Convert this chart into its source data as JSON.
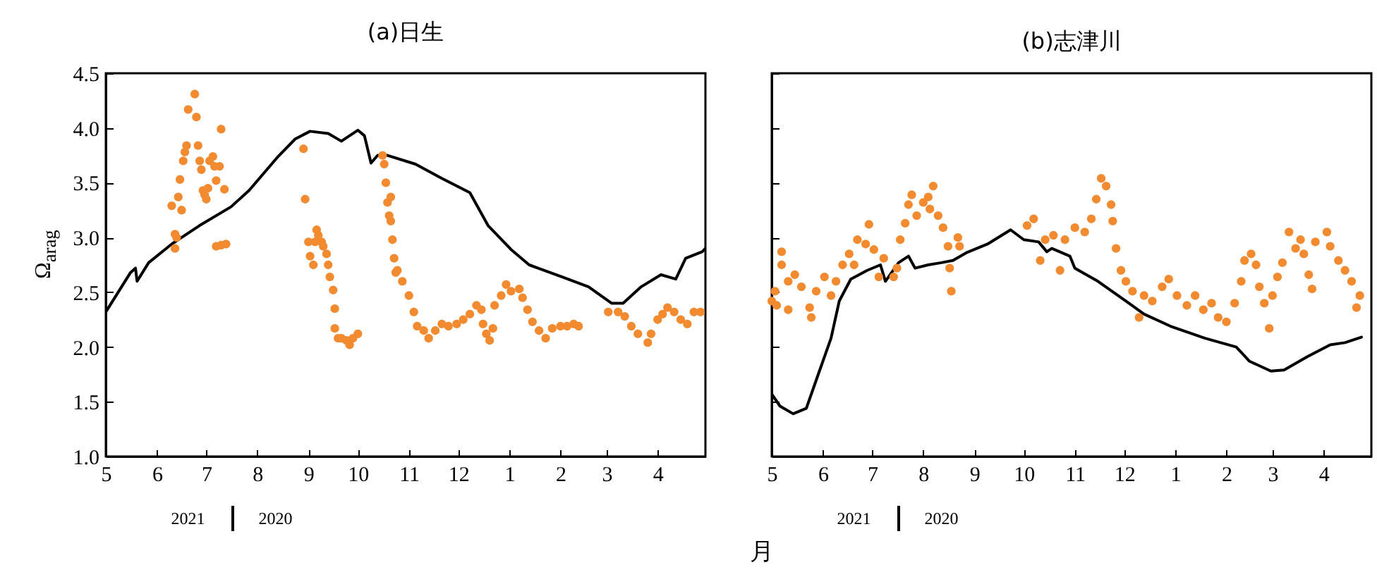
{
  "chart_data": [
    {
      "type": "scatter",
      "title": "(a)日生",
      "xlabel": "月",
      "ylabel": "Ω$_{arag}$",
      "annotations": [
        "2021",
        "2020"
      ],
      "xlim": [
        "2020-05-01",
        "2021-04-30"
      ],
      "xticks": [
        {
          "value": "2020-05-01",
          "label": "5"
        },
        {
          "value": "2020-06-01",
          "label": "6"
        },
        {
          "value": "2020-07-01",
          "label": "7"
        },
        {
          "value": "2020-08-01",
          "label": "8"
        },
        {
          "value": "2020-09-01",
          "label": "9"
        },
        {
          "value": "2020-10-01",
          "label": "10"
        },
        {
          "value": "2020-11-01",
          "label": "11"
        },
        {
          "value": "2020-12-01",
          "label": "12"
        },
        {
          "value": "2021-01-01",
          "label": "1"
        },
        {
          "value": "2021-02-01",
          "label": "2"
        },
        {
          "value": "2021-03-01",
          "label": "3"
        },
        {
          "value": "2021-04-01",
          "label": "4"
        }
      ],
      "ylim": [
        1.0,
        4.5
      ],
      "yticks": [
        {
          "value": 1,
          "label": "1.0"
        },
        {
          "value": 1.5,
          "label": "1.5"
        },
        {
          "value": 2,
          "label": "2.0"
        },
        {
          "value": 2.5,
          "label": "2.5"
        },
        {
          "value": 3,
          "label": "3.0"
        },
        {
          "value": 3.5,
          "label": "3.5"
        },
        {
          "value": 4,
          "label": "4.0"
        },
        {
          "value": 4.5,
          "label": "4.5"
        }
      ],
      "series": [
        {
          "type": "line",
          "color": "#000000",
          "line_style": "solid",
          "x": [
            "2020-05-01",
            "2020-05-16",
            "2020-05-19",
            "2020-05-20",
            "2020-05-27",
            "2020-06-10",
            "2020-06-27",
            "2020-07-16",
            "2020-07-27",
            "2020-08-13",
            "2020-08-24",
            "2020-09-02",
            "2020-09-13",
            "2020-09-21",
            "2020-10-01",
            "2020-10-05",
            "2020-10-09",
            "2020-10-13",
            "2020-10-19",
            "2020-11-05",
            "2020-11-21",
            "2020-12-08",
            "2020-12-19",
            "2021-01-02",
            "2021-01-13",
            "2021-02-02",
            "2021-02-18",
            "2021-03-04",
            "2021-03-11",
            "2021-03-22",
            "2021-04-03",
            "2021-04-12",
            "2021-04-18",
            "2021-04-28",
            "2021-04-30"
          ],
          "values": [
            2.32,
            2.68,
            2.72,
            2.6,
            2.77,
            2.94,
            3.11,
            3.28,
            3.43,
            3.73,
            3.9,
            3.97,
            3.95,
            3.88,
            3.98,
            3.93,
            3.68,
            3.75,
            3.75,
            3.67,
            3.54,
            3.41,
            3.11,
            2.89,
            2.75,
            2.64,
            2.55,
            2.4,
            2.4,
            2.55,
            2.66,
            2.62,
            2.81,
            2.87,
            2.9
          ]
        },
        {
          "type": "scatter",
          "color": "#f28a30",
          "marker": "circle",
          "x": [
            "2020-06-10",
            "2020-06-12",
            "2020-06-12",
            "2020-06-13",
            "2020-06-14",
            "2020-06-15",
            "2020-06-16",
            "2020-06-17",
            "2020-06-18",
            "2020-06-19",
            "2020-06-20",
            "2020-06-24",
            "2020-06-25",
            "2020-06-26",
            "2020-06-27",
            "2020-06-28",
            "2020-06-29",
            "2020-06-30",
            "2020-07-01",
            "2020-07-02",
            "2020-07-03",
            "2020-07-05",
            "2020-07-06",
            "2020-07-07",
            "2020-07-07",
            "2020-07-09",
            "2020-07-10",
            "2020-07-10",
            "2020-07-12",
            "2020-07-13",
            "2020-08-29",
            "2020-08-30",
            "2020-09-01",
            "2020-09-02",
            "2020-09-04",
            "2020-09-05",
            "2020-09-06",
            "2020-09-07",
            "2020-09-09",
            "2020-09-10",
            "2020-09-12",
            "2020-09-13",
            "2020-09-14",
            "2020-09-16",
            "2020-09-17",
            "2020-09-17",
            "2020-09-19",
            "2020-09-21",
            "2020-09-24",
            "2020-09-26",
            "2020-09-28",
            "2020-10-01",
            "2020-10-16",
            "2020-10-17",
            "2020-10-18",
            "2020-10-19",
            "2020-10-20",
            "2020-10-21",
            "2020-10-21",
            "2020-10-22",
            "2020-10-23",
            "2020-10-24",
            "2020-10-25",
            "2020-10-28",
            "2020-11-01",
            "2020-11-04",
            "2020-11-06",
            "2020-11-10",
            "2020-11-13",
            "2020-11-17",
            "2020-11-21",
            "2020-11-25",
            "2020-11-30",
            "2020-12-04",
            "2020-12-08",
            "2020-12-12",
            "2020-12-15",
            "2020-12-16",
            "2020-12-18",
            "2020-12-20",
            "2020-12-22",
            "2020-12-23",
            "2020-12-27",
            "2020-12-30",
            "2021-01-02",
            "2021-01-07",
            "2021-01-09",
            "2021-01-12",
            "2021-01-15",
            "2021-01-19",
            "2021-01-23",
            "2021-01-27",
            "2021-02-01",
            "2021-02-05",
            "2021-02-09",
            "2021-02-12",
            "2021-03-02",
            "2021-03-08",
            "2021-03-12",
            "2021-03-16",
            "2021-03-20",
            "2021-03-26",
            "2021-03-28",
            "2021-04-01",
            "2021-04-04",
            "2021-04-07",
            "2021-04-11",
            "2021-04-15",
            "2021-04-19",
            "2021-04-23",
            "2021-04-27"
          ],
          "values": [
            3.29,
            3.03,
            2.9,
            3.0,
            3.37,
            3.53,
            3.25,
            3.7,
            3.78,
            3.84,
            4.17,
            4.31,
            4.1,
            3.84,
            3.7,
            3.62,
            3.43,
            3.39,
            3.35,
            3.45,
            3.7,
            3.74,
            3.65,
            3.52,
            2.92,
            3.65,
            3.99,
            2.93,
            3.44,
            2.94,
            3.81,
            3.35,
            2.96,
            2.83,
            2.75,
            2.96,
            3.07,
            3.02,
            2.96,
            2.92,
            2.85,
            2.75,
            2.64,
            2.52,
            2.35,
            2.17,
            2.08,
            2.08,
            2.06,
            2.02,
            2.08,
            2.12,
            3.75,
            3.67,
            3.5,
            3.32,
            3.2,
            3.37,
            3.15,
            2.98,
            2.81,
            2.68,
            2.7,
            2.6,
            2.47,
            2.32,
            2.19,
            2.15,
            2.08,
            2.15,
            2.21,
            2.19,
            2.21,
            2.25,
            2.3,
            2.38,
            2.34,
            2.21,
            2.12,
            2.06,
            2.17,
            2.38,
            2.47,
            2.57,
            2.51,
            2.53,
            2.45,
            2.34,
            2.23,
            2.15,
            2.08,
            2.17,
            2.19,
            2.19,
            2.21,
            2.19,
            2.32,
            2.32,
            2.28,
            2.19,
            2.12,
            2.04,
            2.12,
            2.25,
            2.3,
            2.36,
            2.32,
            2.25,
            2.21,
            2.32,
            2.32
          ]
        }
      ]
    },
    {
      "type": "scatter",
      "title": "(b)志津川",
      "annotations": [
        "2021",
        "2020"
      ],
      "xlim": [
        "2020-05-01",
        "2021-04-30"
      ],
      "xticks": [
        {
          "value": "2020-05-01",
          "label": "5"
        },
        {
          "value": "2020-06-01",
          "label": "6"
        },
        {
          "value": "2020-07-01",
          "label": "7"
        },
        {
          "value": "2020-08-01",
          "label": "8"
        },
        {
          "value": "2020-09-01",
          "label": "9"
        },
        {
          "value": "2020-10-01",
          "label": "10"
        },
        {
          "value": "2020-11-01",
          "label": "11"
        },
        {
          "value": "2020-12-01",
          "label": "12"
        },
        {
          "value": "2021-01-01",
          "label": "1"
        },
        {
          "value": "2021-02-01",
          "label": "2"
        },
        {
          "value": "2021-03-01",
          "label": "3"
        },
        {
          "value": "2021-04-01",
          "label": "4"
        }
      ],
      "ylim": [
        1.0,
        4.5
      ],
      "yticks": [
        {
          "value": 1,
          "label": null
        },
        {
          "value": 1.5,
          "label": null
        },
        {
          "value": 2,
          "label": null
        },
        {
          "value": 2.5,
          "label": null
        },
        {
          "value": 3,
          "label": null
        },
        {
          "value": 3.5,
          "label": null
        },
        {
          "value": 4,
          "label": null
        },
        {
          "value": 4.5,
          "label": null
        }
      ],
      "tick_labels": "x",
      "series": [
        {
          "type": "line",
          "color": "#000000",
          "line_style": "solid",
          "x": [
            "2020-05-01",
            "2020-05-06",
            "2020-05-14",
            "2020-05-22",
            "2020-05-29",
            "2020-06-06",
            "2020-06-11",
            "2020-06-18",
            "2020-06-28",
            "2020-07-06",
            "2020-07-09",
            "2020-07-17",
            "2020-07-23",
            "2020-07-27",
            "2020-08-04",
            "2020-08-12",
            "2020-08-19",
            "2020-08-27",
            "2020-09-09",
            "2020-09-23",
            "2020-10-01",
            "2020-10-10",
            "2020-10-15",
            "2020-10-18",
            "2020-10-29",
            "2020-11-01",
            "2020-11-15",
            "2020-12-02",
            "2020-12-13",
            "2020-12-29",
            "2021-01-19",
            "2021-02-07",
            "2021-02-15",
            "2021-02-28",
            "2021-03-08",
            "2021-03-22",
            "2021-04-05",
            "2021-04-14",
            "2021-04-24"
          ],
          "values": [
            1.57,
            1.46,
            1.39,
            1.44,
            1.74,
            2.08,
            2.42,
            2.62,
            2.7,
            2.75,
            2.6,
            2.77,
            2.83,
            2.72,
            2.75,
            2.77,
            2.79,
            2.86,
            2.94,
            3.07,
            2.98,
            2.96,
            2.87,
            2.9,
            2.83,
            2.72,
            2.6,
            2.42,
            2.3,
            2.19,
            2.08,
            2.0,
            1.87,
            1.78,
            1.79,
            1.91,
            2.02,
            2.04,
            2.09
          ]
        },
        {
          "type": "scatter",
          "color": "#f28a30",
          "marker": "circle",
          "x": [
            "2020-05-01",
            "2020-05-03",
            "2020-05-04",
            "2020-05-07",
            "2020-05-07",
            "2020-05-11",
            "2020-05-11",
            "2020-05-15",
            "2020-05-19",
            "2020-05-24",
            "2020-05-25",
            "2020-05-28",
            "2020-06-02",
            "2020-06-06",
            "2020-06-09",
            "2020-06-13",
            "2020-06-17",
            "2020-06-20",
            "2020-06-22",
            "2020-06-27",
            "2020-06-29",
            "2020-07-02",
            "2020-07-05",
            "2020-07-08",
            "2020-07-14",
            "2020-07-16",
            "2020-07-18",
            "2020-07-21",
            "2020-07-23",
            "2020-07-25",
            "2020-07-28",
            "2020-08-01",
            "2020-08-04",
            "2020-08-05",
            "2020-08-07",
            "2020-08-10",
            "2020-08-13",
            "2020-08-16",
            "2020-08-17",
            "2020-08-18",
            "2020-08-22",
            "2020-08-23",
            "2020-10-03",
            "2020-10-07",
            "2020-10-11",
            "2020-10-14",
            "2020-10-19",
            "2020-10-23",
            "2020-10-26",
            "2020-11-01",
            "2020-11-07",
            "2020-11-11",
            "2020-11-14",
            "2020-11-17",
            "2020-11-20",
            "2020-11-23",
            "2020-11-24",
            "2020-11-26",
            "2020-11-29",
            "2020-12-02",
            "2020-12-06",
            "2020-12-10",
            "2020-12-13",
            "2020-12-18",
            "2020-12-24",
            "2020-12-28",
            "2021-01-02",
            "2021-01-08",
            "2021-01-13",
            "2021-01-18",
            "2021-01-23",
            "2021-01-27",
            "2021-02-01",
            "2021-02-06",
            "2021-02-10",
            "2021-02-12",
            "2021-02-16",
            "2021-02-19",
            "2021-02-21",
            "2021-02-24",
            "2021-02-27",
            "2021-03-01",
            "2021-03-04",
            "2021-03-07",
            "2021-03-11",
            "2021-03-15",
            "2021-03-18",
            "2021-03-20",
            "2021-03-23",
            "2021-03-25",
            "2021-03-27",
            "2021-04-03",
            "2021-04-05",
            "2021-04-10",
            "2021-04-14",
            "2021-04-18",
            "2021-04-21",
            "2021-04-23"
          ],
          "values": [
            2.42,
            2.51,
            2.38,
            2.87,
            2.75,
            2.34,
            2.6,
            2.66,
            2.55,
            2.36,
            2.27,
            2.51,
            2.64,
            2.47,
            2.6,
            2.75,
            2.85,
            2.75,
            2.98,
            2.94,
            3.12,
            2.89,
            2.64,
            2.81,
            2.64,
            2.72,
            2.98,
            3.13,
            3.3,
            3.39,
            3.2,
            3.32,
            3.37,
            3.26,
            3.47,
            3.2,
            3.09,
            2.92,
            2.72,
            2.51,
            3.0,
            2.92,
            3.11,
            3.17,
            2.79,
            2.98,
            3.02,
            2.7,
            2.98,
            3.09,
            3.05,
            3.17,
            3.35,
            3.54,
            3.47,
            3.3,
            3.15,
            2.9,
            2.7,
            2.6,
            2.51,
            2.27,
            2.47,
            2.42,
            2.55,
            2.62,
            2.47,
            2.38,
            2.47,
            2.34,
            2.4,
            2.27,
            2.23,
            2.4,
            2.6,
            2.79,
            2.85,
            2.75,
            2.55,
            2.4,
            2.17,
            2.47,
            2.64,
            2.77,
            3.05,
            2.9,
            2.98,
            2.85,
            2.66,
            2.53,
            2.96,
            3.05,
            2.92,
            2.79,
            2.7,
            2.6,
            2.36,
            2.47
          ]
        }
      ]
    }
  ]
}
